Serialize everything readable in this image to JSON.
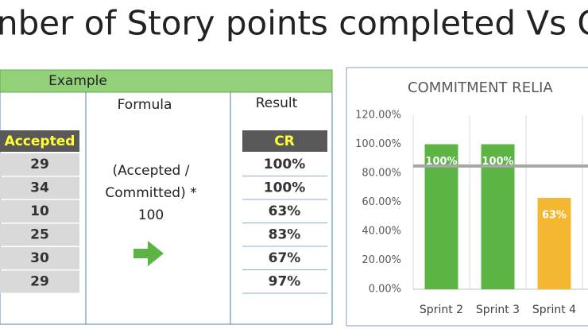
{
  "title": "nber of Story points completed Vs C",
  "table": {
    "header": "Example",
    "formula_label": "Formula",
    "result_label": "Result",
    "formula": [
      "(Accepted /",
      "Committed) *",
      "100"
    ],
    "accepted_header": "Accepted",
    "cr_header": "CR",
    "accepted": [
      29,
      34,
      10,
      25,
      30,
      29
    ],
    "cr": [
      "100%",
      "100%",
      "63%",
      "83%",
      "67%",
      "97%"
    ]
  },
  "chart_data": {
    "type": "bar",
    "title": "COMMITMENT RELIA",
    "categories": [
      "Sprint 2",
      "Sprint 3",
      "Sprint 4"
    ],
    "values": [
      100,
      100,
      63
    ],
    "value_labels": [
      "100%",
      "100%",
      "63%"
    ],
    "colors": [
      "#5bb443",
      "#5bb443",
      "#f4b731"
    ],
    "reference_line": 85,
    "reference_color": "#a6a6a6",
    "ylim": [
      0,
      120
    ],
    "yticks": [
      {
        "value": 0,
        "label": "0.00%"
      },
      {
        "value": 20,
        "label": "20.00%"
      },
      {
        "value": 40,
        "label": "40.00%"
      },
      {
        "value": 60,
        "label": "60.00%"
      },
      {
        "value": 80,
        "label": "80.00%"
      },
      {
        "value": 100,
        "label": "100.00%"
      },
      {
        "value": 120,
        "label": "120.00%"
      }
    ],
    "grid": true
  }
}
